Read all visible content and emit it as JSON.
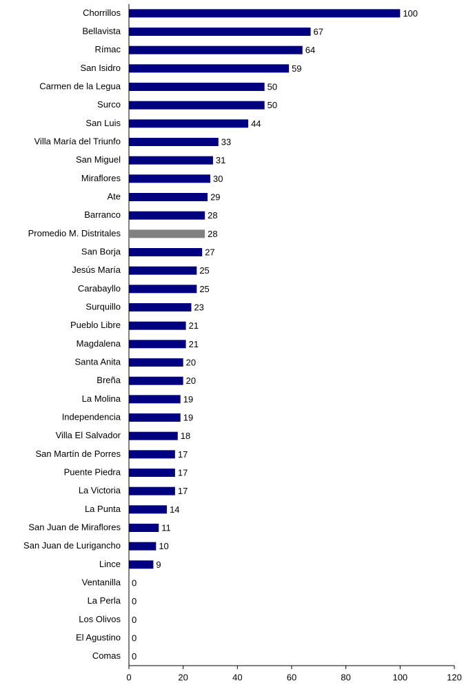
{
  "chart_data": {
    "type": "barh",
    "categories": [
      "Chorrillos",
      "Bellavista",
      "Rímac",
      "San Isidro",
      "Carmen de la Legua",
      "Surco",
      "San Luis",
      "Villa María del Triunfo",
      "San Miguel",
      "Miraflores",
      "Ate",
      "Barranco",
      "Promedio M. Distritales",
      "San Borja",
      "Jesús María",
      "Carabayllo",
      "Surquillo",
      "Pueblo Libre",
      "Magdalena",
      "Santa Anita",
      "Breña",
      "La Molina",
      "Independencia",
      "Villa El Salvador",
      "San Martín de Porres",
      "Puente Piedra",
      "La Victoria",
      "La Punta",
      "San Juan de Miraflores",
      "San Juan de Lurigancho",
      "Lince",
      "Ventanilla",
      "La Perla",
      "Los Olivos",
      "El Agustino",
      "Comas"
    ],
    "values": [
      100,
      67,
      64,
      59,
      50,
      50,
      44,
      33,
      31,
      30,
      29,
      28,
      28,
      27,
      25,
      25,
      23,
      21,
      21,
      20,
      20,
      19,
      19,
      18,
      17,
      17,
      17,
      14,
      11,
      10,
      9,
      0,
      0,
      0,
      0,
      0
    ],
    "colors": [
      "#000080",
      "#000080",
      "#000080",
      "#000080",
      "#000080",
      "#000080",
      "#000080",
      "#000080",
      "#000080",
      "#000080",
      "#000080",
      "#000080",
      "#808080",
      "#000080",
      "#000080",
      "#000080",
      "#000080",
      "#000080",
      "#000080",
      "#000080",
      "#000080",
      "#000080",
      "#000080",
      "#000080",
      "#000080",
      "#000080",
      "#000080",
      "#000080",
      "#000080",
      "#000080",
      "#000080",
      "#000080",
      "#000080",
      "#000080",
      "#000080",
      "#000080"
    ],
    "xlim": [
      0,
      120
    ],
    "xticks": [
      0,
      20,
      40,
      60,
      80,
      100,
      120
    ],
    "grid": false
  }
}
